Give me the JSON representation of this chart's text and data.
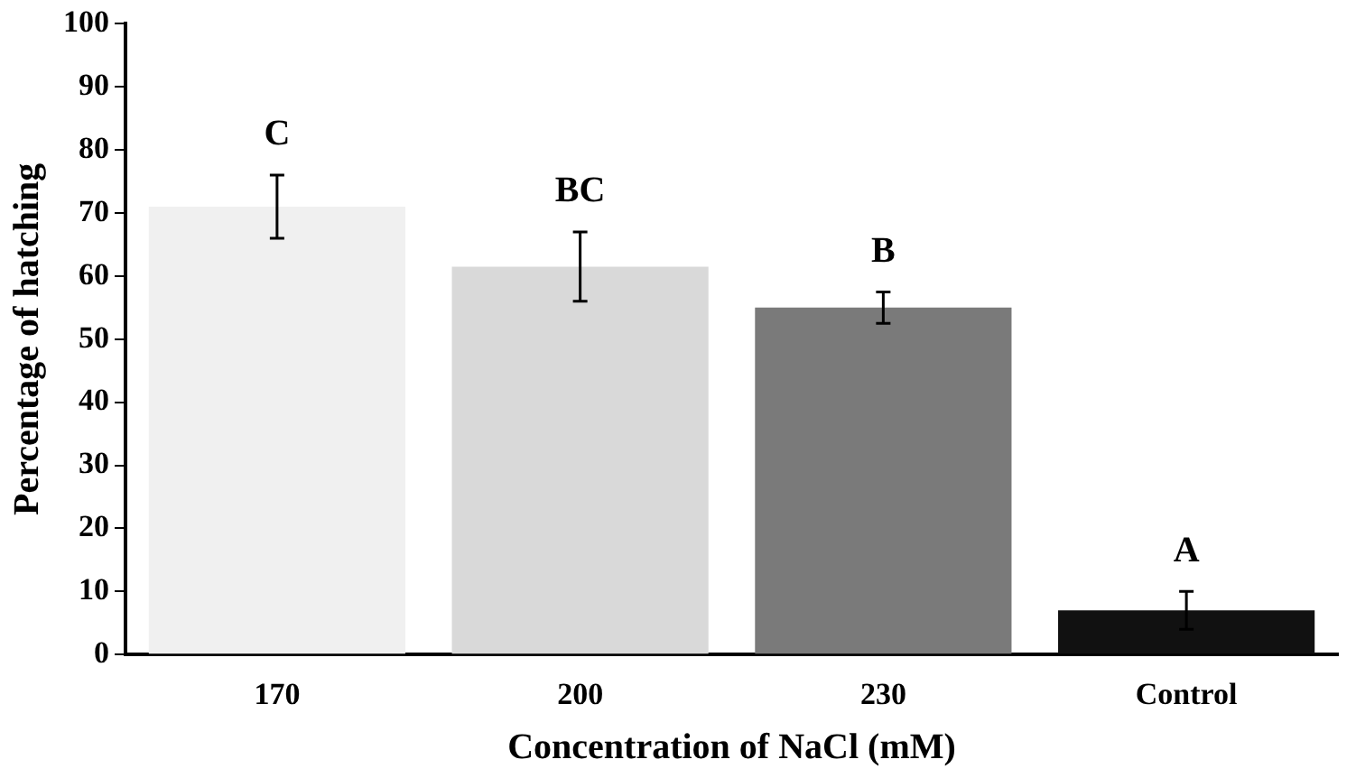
{
  "chart_data": {
    "type": "bar",
    "xlabel": "Concentration of NaCl (mM)",
    "ylabel": "Percentage of hatching",
    "categories": [
      "170",
      "200",
      "230",
      "Control"
    ],
    "values": [
      71,
      61.5,
      55,
      7
    ],
    "colors": [
      "#f0f0f0",
      "#d9d9d9",
      "#7a7a7a",
      "#111111"
    ],
    "errors": [
      5,
      5.5,
      2.5,
      3
    ],
    "ylim": [
      0,
      100
    ],
    "yticks": [
      0,
      10,
      20,
      30,
      40,
      50,
      60,
      70,
      80,
      90,
      100
    ],
    "grid": false,
    "legend": false,
    "annotations": [
      "C",
      "BC",
      "B",
      "A"
    ]
  }
}
